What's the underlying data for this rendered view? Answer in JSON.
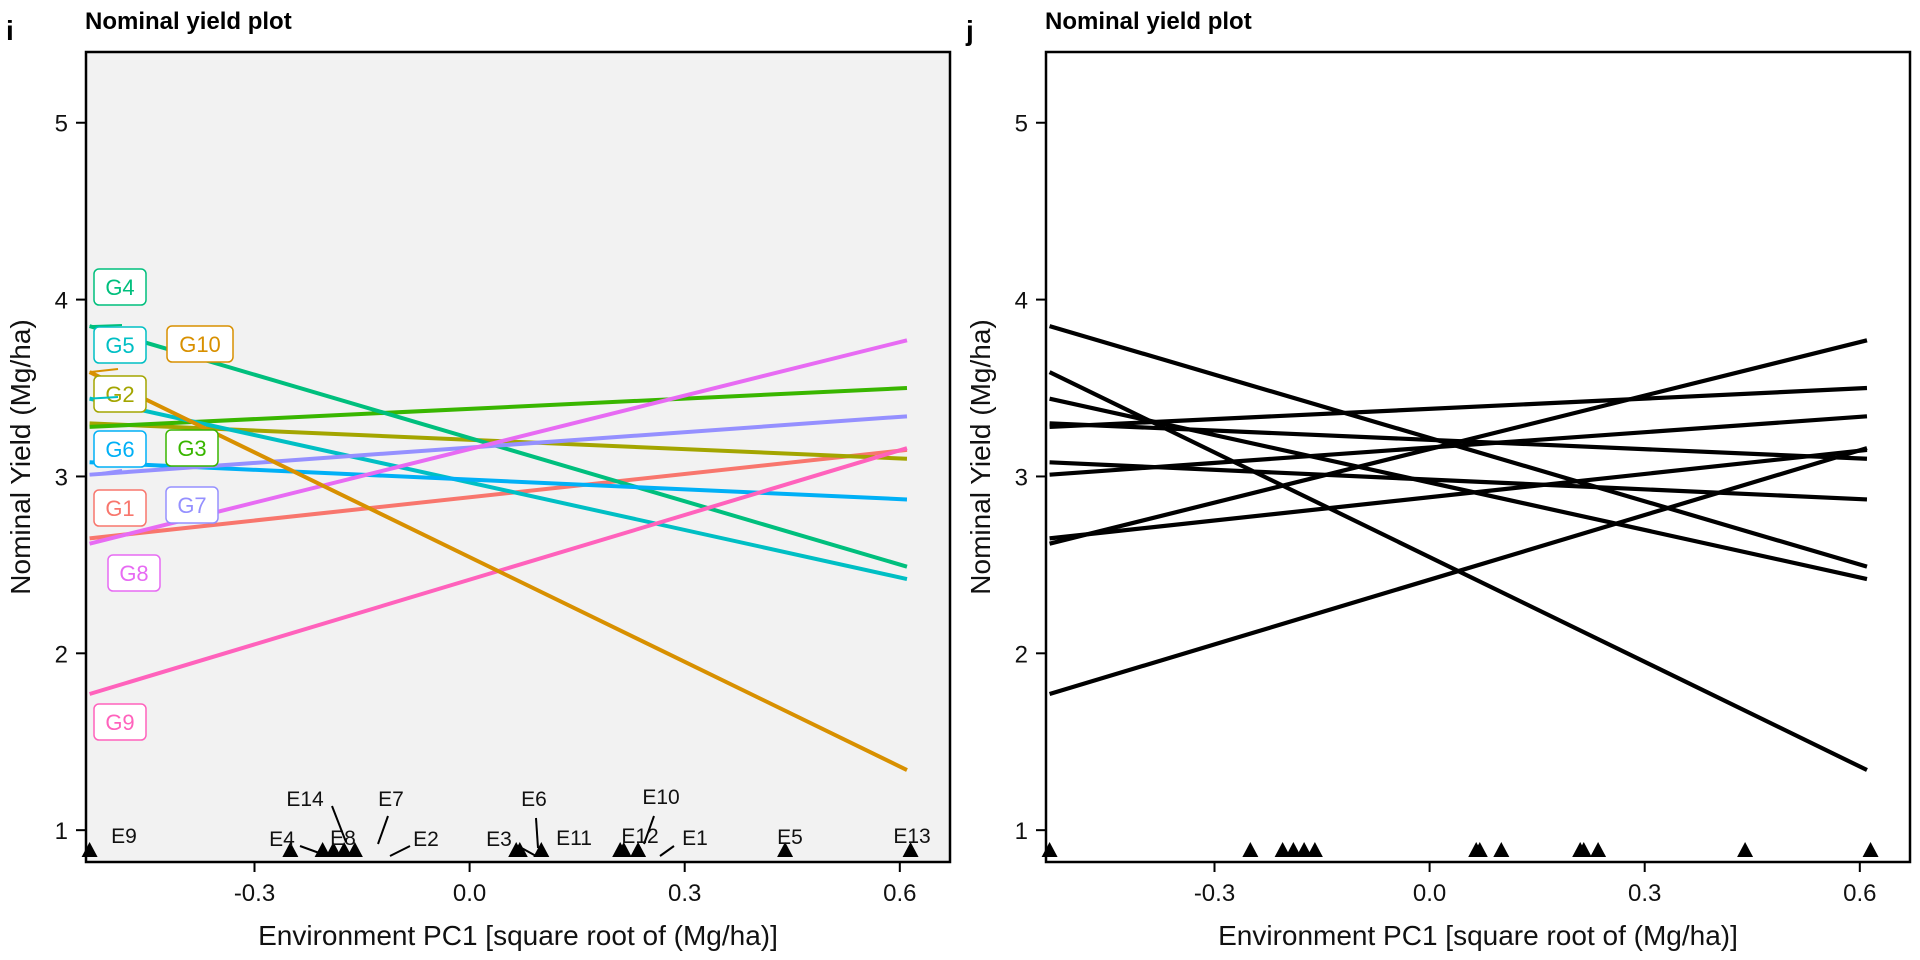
{
  "panels": [
    {
      "label": "i",
      "title": "Nominal yield plot",
      "colored": true
    },
    {
      "label": "j",
      "title": "Nominal yield plot",
      "colored": false
    }
  ],
  "axes": {
    "xlabel": "Environment PC1 [square root of  (Mg/ha)]",
    "ylabel": "Nominal Yield (Mg/ha)",
    "xlim": [
      -0.535,
      0.67
    ],
    "ylim": [
      0.82,
      5.4
    ],
    "xticks": [
      -0.3,
      0.0,
      0.3,
      0.6
    ],
    "xtick_labels": [
      "-0.3",
      "0.0",
      "0.3",
      "0.6"
    ],
    "yticks": [
      1,
      2,
      3,
      4,
      5
    ],
    "ytick_labels": [
      "1",
      "2",
      "3",
      "4",
      "5"
    ]
  },
  "chart_data": [
    {
      "type": "line",
      "panel": "i",
      "title": "Nominal yield plot",
      "xlabel": "Environment PC1 [square root of  (Mg/ha)]",
      "ylabel": "Nominal Yield (Mg/ha)",
      "background": "#f2f2f2",
      "x_range": [
        -0.53,
        0.61
      ],
      "series": [
        {
          "name": "G1",
          "color": "#f8766d",
          "start": 2.65,
          "end": 3.15
        },
        {
          "name": "G2",
          "color": "#a3a500",
          "start": 3.3,
          "end": 3.1
        },
        {
          "name": "G3",
          "color": "#39b600",
          "start": 3.28,
          "end": 3.5
        },
        {
          "name": "G4",
          "color": "#00bf7d",
          "start": 3.85,
          "end": 2.49
        },
        {
          "name": "G5",
          "color": "#00bfc4",
          "start": 3.44,
          "end": 2.42
        },
        {
          "name": "G6",
          "color": "#00b0f6",
          "start": 3.08,
          "end": 2.87
        },
        {
          "name": "G7",
          "color": "#9590ff",
          "start": 3.01,
          "end": 3.34
        },
        {
          "name": "G8",
          "color": "#e76bf3",
          "start": 2.62,
          "end": 3.77
        },
        {
          "name": "G9",
          "color": "#ff62bc",
          "start": 1.77,
          "end": 3.16
        },
        {
          "name": "G10",
          "color": "#d89000",
          "start": 3.59,
          "end": 1.34
        }
      ],
      "environments": [
        {
          "name": "E1",
          "x": 0.235
        },
        {
          "name": "E2",
          "x": -0.16
        },
        {
          "name": "E3",
          "x": 0.065
        },
        {
          "name": "E4",
          "x": -0.25
        },
        {
          "name": "E5",
          "x": 0.44
        },
        {
          "name": "E6",
          "x": 0.07
        },
        {
          "name": "E7",
          "x": -0.175
        },
        {
          "name": "E8",
          "x": -0.205
        },
        {
          "name": "E9",
          "x": -0.53
        },
        {
          "name": "E10",
          "x": 0.215
        },
        {
          "name": "E11",
          "x": 0.1
        },
        {
          "name": "E12",
          "x": 0.21
        },
        {
          "name": "E13",
          "x": 0.615
        },
        {
          "name": "E14",
          "x": -0.19
        }
      ]
    },
    {
      "type": "line",
      "panel": "j",
      "title": "Nominal yield plot",
      "xlabel": "Environment PC1 [square root of  (Mg/ha)]",
      "ylabel": "Nominal Yield (Mg/ha)",
      "line_color": "#000000",
      "note_colors": "same lines as panel i drawn in black",
      "environments_labeled": false
    }
  ]
}
